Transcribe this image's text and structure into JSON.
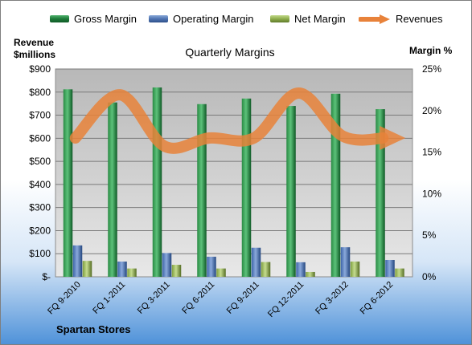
{
  "chart_data": {
    "type": "bar",
    "title": "Quarterly Margins",
    "company": "Spartan Stores",
    "left_axis_title": [
      "Revenue",
      "$millions"
    ],
    "right_axis_title": "Margin %",
    "categories": [
      "FQ 9-2010",
      "FQ 1-2011",
      "FQ 3-2011",
      "FQ 6-2011",
      "FQ 9-2011",
      "FQ 12-2011",
      "FQ 3-2012",
      "FQ 6-2012"
    ],
    "left_ticks": [
      "$-",
      "$100",
      "$200",
      "$300",
      "$400",
      "$500",
      "$600",
      "$700",
      "$800",
      "$900"
    ],
    "right_ticks": [
      "0%",
      "5%",
      "10%",
      "15%",
      "20%",
      "25%"
    ],
    "ylim_left": [
      0,
      900
    ],
    "ylim_right": [
      0,
      25
    ],
    "series": [
      {
        "name": "Gross Margin",
        "kind": "bar",
        "axis": "left",
        "color": "#1e7a3a",
        "values": [
          812,
          755,
          820,
          748,
          772,
          740,
          793,
          726
        ]
      },
      {
        "name": "Operating Margin",
        "kind": "bar",
        "axis": "left",
        "color": "#4f74b2",
        "values": [
          136,
          66,
          103,
          87,
          126,
          63,
          128,
          73
        ]
      },
      {
        "name": "Net Margin",
        "kind": "bar",
        "axis": "left",
        "color": "#8fae4c",
        "values": [
          69,
          36,
          52,
          36,
          64,
          21,
          66,
          36
        ]
      },
      {
        "name": "Revenues",
        "kind": "line",
        "axis": "right",
        "color": "#e8823a",
        "values": [
          16.7,
          21.9,
          15.7,
          16.7,
          16.7,
          22.1,
          16.9,
          16.7
        ]
      }
    ],
    "grid": true,
    "legend_position": "top"
  }
}
